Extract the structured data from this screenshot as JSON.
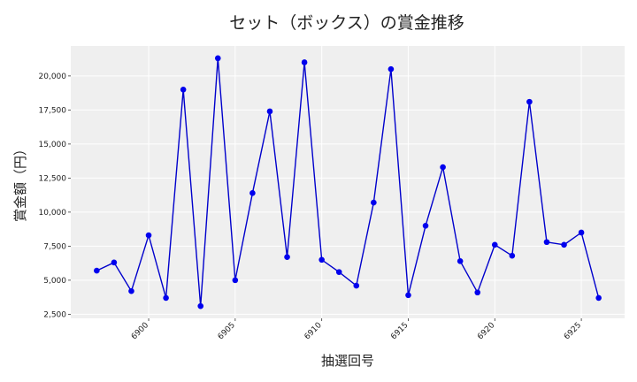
{
  "chart_data": {
    "type": "line",
    "title": "セット（ボックス）の賞金推移",
    "xlabel": "抽選回号",
    "ylabel": "賞金額（円）",
    "x": [
      6897,
      6898,
      6899,
      6900,
      6901,
      6902,
      6903,
      6904,
      6905,
      6906,
      6907,
      6908,
      6909,
      6910,
      6911,
      6912,
      6913,
      6914,
      6915,
      6916,
      6917,
      6918,
      6919,
      6920,
      6921,
      6922,
      6923,
      6924,
      6925,
      6926
    ],
    "series": [
      {
        "values": [
          5700,
          6300,
          4200,
          8300,
          3700,
          19000,
          3100,
          21300,
          5000,
          11400,
          17400,
          6700,
          21000,
          6500,
          5600,
          4600,
          10700,
          20500,
          3900,
          9000,
          13300,
          6400,
          4100,
          7600,
          6800,
          18100,
          7800,
          7600,
          8500,
          3700
        ]
      }
    ],
    "x_ticks": [
      6900,
      6905,
      6910,
      6915,
      6920,
      6925
    ],
    "x_tick_labels": [
      "6900",
      "6905",
      "6910",
      "6915",
      "6920",
      "6925"
    ],
    "y_ticks": [
      2500,
      5000,
      7500,
      10000,
      12500,
      15000,
      17500,
      20000
    ],
    "y_tick_labels": [
      "2,500",
      "5,000",
      "7,500",
      "10,000",
      "12,500",
      "15,000",
      "17,500",
      "20,000"
    ],
    "xlim": [
      6895.5,
      6927.5
    ],
    "ylim": [
      2200,
      22200
    ],
    "grid": true,
    "line_color": "#0000cc",
    "marker_color": "#0000ee",
    "plot_background": "#efefef"
  }
}
